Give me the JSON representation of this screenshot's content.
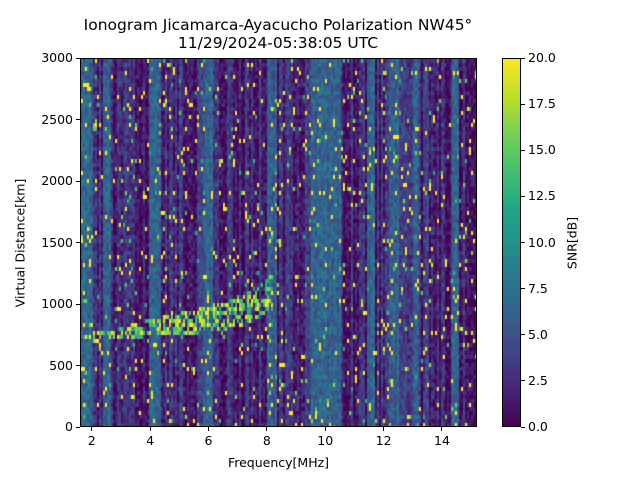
{
  "chart_data": {
    "type": "heatmap",
    "title": "Ionogram Jicamarca-Ayacucho Polarization NW45°",
    "subtitle": "11/29/2024-05:38:05 UTC",
    "xlabel": "Frequency[MHz]",
    "ylabel": "Virtual Distance[km]",
    "xlim": [
      1.6,
      15.2
    ],
    "ylim": [
      0,
      3000
    ],
    "xticks": [
      2,
      4,
      6,
      8,
      10,
      12,
      14
    ],
    "xtick_labels": [
      "2",
      "4",
      "6",
      "8",
      "10",
      "12",
      "14"
    ],
    "yticks": [
      0,
      500,
      1000,
      1500,
      2000,
      2500,
      3000
    ],
    "ytick_labels": [
      "0",
      "500",
      "1000",
      "1500",
      "2000",
      "2500",
      "3000"
    ],
    "colorbar": {
      "label": "SNR[dB]",
      "colormap": "viridis",
      "range": [
        0.0,
        20.0
      ],
      "ticks": [
        0.0,
        2.5,
        5.0,
        7.5,
        10.0,
        12.5,
        15.0,
        17.5,
        20.0
      ],
      "tick_labels": [
        "0.0",
        "2.5",
        "5.0",
        "7.5",
        "10.0",
        "12.5",
        "15.0",
        "17.5",
        "20.0"
      ]
    },
    "echo_trace": {
      "description": "Oblique ionospheric echo rising from ~1.6 MHz at ~730 km to ~8.2 MHz at ~1150 km",
      "points": [
        {
          "freq": 1.6,
          "dist": 730
        },
        {
          "freq": 2.5,
          "dist": 740
        },
        {
          "freq": 3.5,
          "dist": 780
        },
        {
          "freq": 4.5,
          "dist": 820
        },
        {
          "freq": 5.5,
          "dist": 850
        },
        {
          "freq": 6.5,
          "dist": 900
        },
        {
          "freq": 7.3,
          "dist": 960
        },
        {
          "freq": 7.8,
          "dist": 1020
        },
        {
          "freq": 8.2,
          "dist": 1100
        }
      ]
    },
    "background_bands": {
      "description": "Vertical frequency bands of elevated background SNR (~5-7 dB) alternating with low bands (~0-2 dB)",
      "elevated_mhz": [
        [
          1.6,
          2.0
        ],
        [
          2.3,
          2.6
        ],
        [
          3.9,
          4.3
        ],
        [
          5.8,
          6.1
        ],
        [
          8.0,
          8.3
        ],
        [
          9.5,
          10.5
        ],
        [
          11.4,
          11.7
        ],
        [
          12.2,
          12.5
        ],
        [
          13.0,
          13.2
        ],
        [
          14.3,
          14.6
        ]
      ]
    },
    "grid": false
  }
}
